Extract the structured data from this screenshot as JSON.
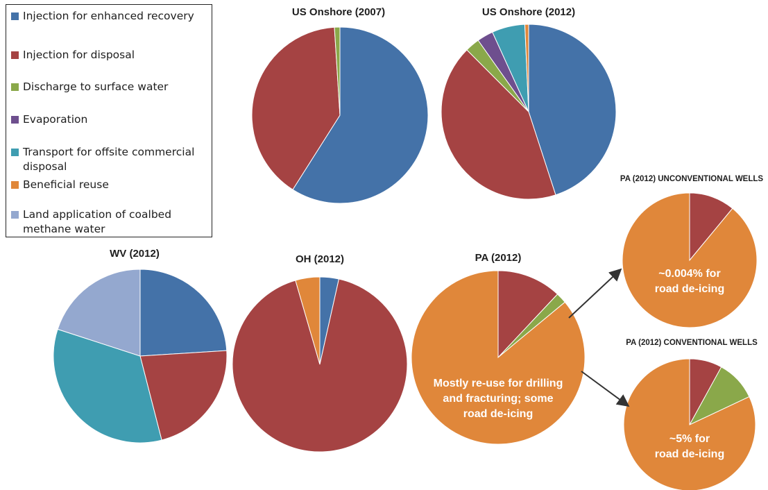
{
  "legend": [
    {
      "label": "Injection for enhanced recovery",
      "color": "#4472a8"
    },
    {
      "label": "Injection for disposal",
      "color": "#a54343"
    },
    {
      "label": "Discharge to surface water",
      "color": "#8aa84a"
    },
    {
      "label": "Evaporation",
      "color": "#6e4f8e"
    },
    {
      "label": "Transport for offsite commercial disposal",
      "color": "#3f9db1"
    },
    {
      "label": "Beneficial reuse",
      "color": "#e0873a"
    },
    {
      "label": "Land application of coalbed methane water",
      "color": "#94a8cf"
    }
  ],
  "chart_data": [
    {
      "id": "us2007",
      "type": "pie",
      "title": "US Onshore (2007)",
      "slices": [
        {
          "category": "Injection for enhanced recovery",
          "value": 59
        },
        {
          "category": "Injection for disposal",
          "value": 40
        },
        {
          "category": "Discharge to surface water",
          "value": 1
        }
      ]
    },
    {
      "id": "us2012",
      "type": "pie",
      "title": "US Onshore (2012)",
      "slices": [
        {
          "category": "Injection for enhanced recovery",
          "value": 45
        },
        {
          "category": "Injection for disposal",
          "value": 42.5
        },
        {
          "category": "Discharge to surface water",
          "value": 2.7
        },
        {
          "category": "Evaporation",
          "value": 3
        },
        {
          "category": "Transport for offsite commercial disposal",
          "value": 6.1
        },
        {
          "category": "Beneficial reuse",
          "value": 0.7
        }
      ]
    },
    {
      "id": "wv2012",
      "type": "pie",
      "title": "WV (2012)",
      "slices": [
        {
          "category": "Injection for enhanced recovery",
          "value": 24
        },
        {
          "category": "Injection for disposal",
          "value": 22
        },
        {
          "category": "Transport for offsite commercial disposal",
          "value": 34
        },
        {
          "category": "Land application of coalbed methane water",
          "value": 20
        }
      ]
    },
    {
      "id": "oh2012",
      "type": "pie",
      "title": "OH (2012)",
      "slices": [
        {
          "category": "Injection for enhanced recovery",
          "value": 3.5
        },
        {
          "category": "Injection for disposal",
          "value": 92
        },
        {
          "category": "Beneficial reuse",
          "value": 4.5
        }
      ]
    },
    {
      "id": "pa2012",
      "type": "pie",
      "title": "PA (2012)",
      "slices": [
        {
          "category": "Injection for disposal",
          "value": 12
        },
        {
          "category": "Discharge to surface water",
          "value": 2
        },
        {
          "category": "Beneficial reuse",
          "value": 86
        }
      ],
      "annotation": "Mostly re-use for drilling and fracturing; some road de-icing"
    },
    {
      "id": "pa_unconv",
      "type": "pie",
      "title": "PA (2012) UNCONVENTIONAL WELLS",
      "slices": [
        {
          "category": "Injection for disposal",
          "value": 11
        },
        {
          "category": "Beneficial reuse",
          "value": 89
        }
      ],
      "annotation": "~0.004% for road de-icing"
    },
    {
      "id": "pa_conv",
      "type": "pie",
      "title": "PA (2012) CONVENTIONAL WELLS",
      "slices": [
        {
          "category": "Injection for disposal",
          "value": 8
        },
        {
          "category": "Discharge to surface water",
          "value": 10
        },
        {
          "category": "Beneficial reuse",
          "value": 82
        }
      ],
      "annotation": "~5% for road de-icing"
    }
  ]
}
